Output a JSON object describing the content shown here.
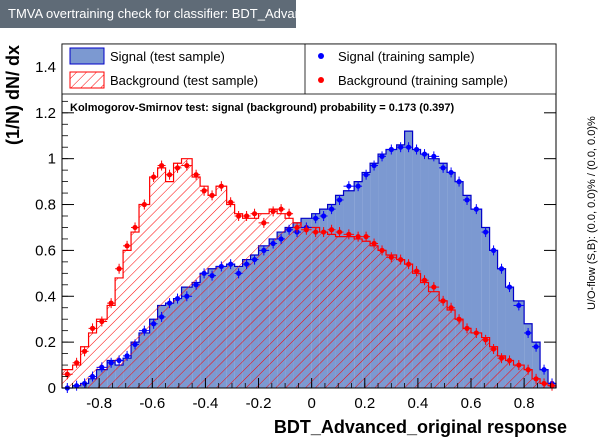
{
  "window_title": "TMVA overtraining check for classifier: BDT_Advanced_original",
  "side_note": "U/O-flow (S,B): (0.0, 0.0)% / (0.0, 0.0)%",
  "colors": {
    "signal_fill": "#7c99d1",
    "signal_line": "#0000c8",
    "background_line": "#ff0000",
    "signal_marker": "#0000ff",
    "background_marker": "#ff0000"
  },
  "chart_data": {
    "type": "histogram",
    "xlabel": "BDT_Advanced_original response",
    "ylabel": "(1/N) dN/ dx",
    "xlim": [
      -0.94,
      0.92
    ],
    "ylim": [
      0,
      1.5
    ],
    "x_ticks": [
      "-0.8",
      "-0.6",
      "-0.4",
      "-0.2",
      "0",
      "0.2",
      "0.4",
      "0.6",
      "0.8"
    ],
    "y_ticks": [
      "0",
      "0.2",
      "0.4",
      "0.6",
      "0.8",
      "1",
      "1.2",
      "1.4"
    ],
    "annotation": "Kolmogorov-Smirnov test: signal (background) probability = 0.173 (0.397)",
    "legend": {
      "signal_test": "Signal (test sample)",
      "background_test": "Background (test sample)",
      "signal_train": "Signal (training sample)",
      "background_train": "Background (training sample)"
    },
    "bin_edges": [
      -0.94,
      -0.9,
      -0.87,
      -0.84,
      -0.81,
      -0.77,
      -0.74,
      -0.71,
      -0.68,
      -0.65,
      -0.61,
      -0.58,
      -0.55,
      -0.52,
      -0.49,
      -0.45,
      -0.42,
      -0.39,
      -0.36,
      -0.32,
      -0.29,
      -0.26,
      -0.23,
      -0.2,
      -0.16,
      -0.13,
      -0.1,
      -0.07,
      -0.04,
      0,
      0.03,
      0.06,
      0.09,
      0.12,
      0.16,
      0.19,
      0.22,
      0.25,
      0.28,
      0.32,
      0.35,
      0.38,
      0.41,
      0.44,
      0.48,
      0.51,
      0.54,
      0.57,
      0.6,
      0.64,
      0.67,
      0.7,
      0.73,
      0.76,
      0.8,
      0.83,
      0.86,
      0.89,
      0.92
    ],
    "series": [
      {
        "name": "Signal (test sample)",
        "values": [
          0.0,
          0.01,
          0.02,
          0.04,
          0.08,
          0.12,
          0.1,
          0.13,
          0.2,
          0.24,
          0.3,
          0.36,
          0.37,
          0.39,
          0.44,
          0.46,
          0.5,
          0.52,
          0.53,
          0.54,
          0.53,
          0.56,
          0.58,
          0.62,
          0.65,
          0.68,
          0.7,
          0.72,
          0.74,
          0.76,
          0.78,
          0.8,
          0.84,
          0.86,
          0.9,
          0.94,
          0.98,
          1.02,
          1.04,
          1.06,
          1.12,
          1.04,
          1.02,
          1.0,
          0.98,
          0.94,
          0.9,
          0.84,
          0.78,
          0.7,
          0.6,
          0.52,
          0.44,
          0.38,
          0.28,
          0.2,
          0.08,
          0.02
        ]
      },
      {
        "name": "Background (test sample)",
        "values": [
          0.08,
          0.1,
          0.18,
          0.24,
          0.3,
          0.36,
          0.48,
          0.6,
          0.68,
          0.8,
          0.92,
          0.96,
          0.9,
          0.98,
          1.0,
          0.92,
          0.88,
          0.84,
          0.88,
          0.8,
          0.76,
          0.74,
          0.74,
          0.76,
          0.78,
          0.76,
          0.74,
          0.72,
          0.7,
          0.7,
          0.68,
          0.67,
          0.66,
          0.66,
          0.65,
          0.64,
          0.62,
          0.6,
          0.58,
          0.56,
          0.54,
          0.5,
          0.46,
          0.42,
          0.38,
          0.34,
          0.3,
          0.26,
          0.24,
          0.22,
          0.18,
          0.14,
          0.12,
          0.1,
          0.08,
          0.04,
          0.02,
          0.01
        ]
      },
      {
        "name": "Signal (training sample)",
        "values": [
          0.0,
          0.01,
          0.02,
          0.05,
          0.09,
          0.11,
          0.12,
          0.14,
          0.19,
          0.25,
          0.28,
          0.31,
          0.37,
          0.39,
          0.4,
          0.45,
          0.5,
          0.49,
          0.53,
          0.54,
          0.5,
          0.54,
          0.56,
          0.6,
          0.63,
          0.65,
          0.69,
          0.68,
          0.7,
          0.74,
          0.75,
          0.78,
          0.82,
          0.88,
          0.88,
          0.93,
          0.97,
          1.01,
          1.04,
          1.05,
          1.05,
          1.04,
          1.02,
          1.01,
          0.96,
          0.94,
          0.9,
          0.82,
          0.78,
          0.68,
          0.6,
          0.52,
          0.44,
          0.36,
          0.24,
          0.18,
          0.08,
          0.02
        ]
      },
      {
        "name": "Background (training sample)",
        "values": [
          0.06,
          0.11,
          0.16,
          0.26,
          0.29,
          0.37,
          0.52,
          0.62,
          0.7,
          0.8,
          0.92,
          0.97,
          0.93,
          0.96,
          0.97,
          0.93,
          0.86,
          0.84,
          0.88,
          0.81,
          0.75,
          0.75,
          0.76,
          0.72,
          0.77,
          0.78,
          0.76,
          0.7,
          0.69,
          0.68,
          0.68,
          0.69,
          0.68,
          0.67,
          0.66,
          0.66,
          0.63,
          0.6,
          0.57,
          0.56,
          0.54,
          0.51,
          0.47,
          0.44,
          0.38,
          0.35,
          0.3,
          0.26,
          0.24,
          0.21,
          0.17,
          0.13,
          0.12,
          0.1,
          0.08,
          0.04,
          0.02,
          0.01
        ]
      }
    ]
  }
}
